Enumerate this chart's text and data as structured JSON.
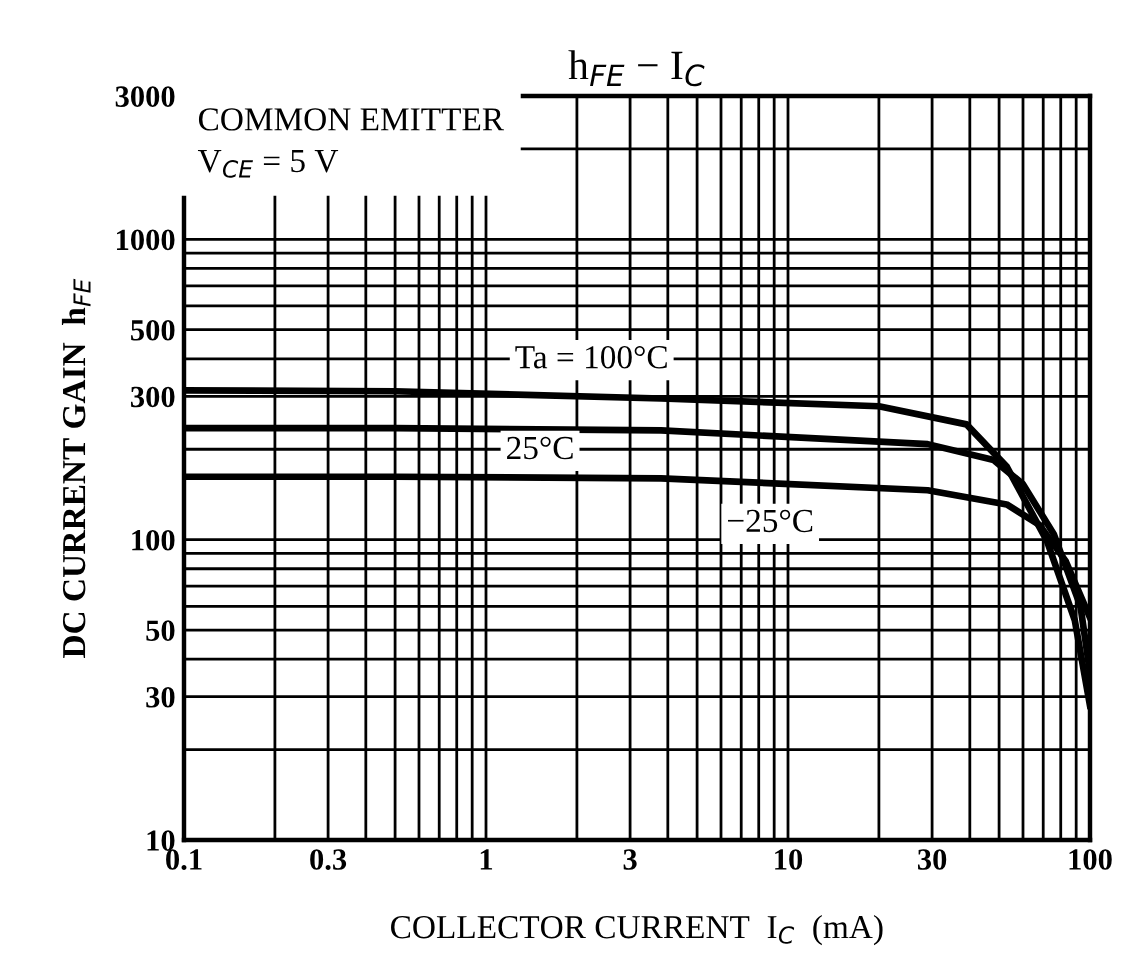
{
  "chart_data": {
    "type": "line",
    "title": "h$_{FE}$ − I$_{C}$",
    "xlabel": "COLLECTOR CURRENT  I$_{C}$  (mA)",
    "ylabel": "DC CURRENT GAIN  h$_{FE}$",
    "annotations": [
      "COMMON EMITTER",
      "V$_{CE}$ = 5 V"
    ],
    "log": "xy",
    "xlim": [
      0.1,
      100
    ],
    "ylim": [
      10,
      3000
    ],
    "xticks": [
      0.1,
      {
        "value": 0.2,
        "label": null
      },
      0.3,
      {
        "value": 0.4,
        "label": null
      },
      {
        "value": 0.5,
        "label": null
      },
      {
        "value": 0.6,
        "label": null
      },
      {
        "value": 0.7,
        "label": null
      },
      {
        "value": 0.8,
        "label": null
      },
      {
        "value": 0.9,
        "label": null
      },
      1,
      {
        "value": 2,
        "label": null
      },
      3,
      {
        "value": 4,
        "label": null
      },
      {
        "value": 5,
        "label": null
      },
      {
        "value": 6,
        "label": null
      },
      {
        "value": 7,
        "label": null
      },
      {
        "value": 8,
        "label": null
      },
      {
        "value": 9,
        "label": null
      },
      10,
      {
        "value": 20,
        "label": null
      },
      30,
      {
        "value": 40,
        "label": null
      },
      {
        "value": 50,
        "label": null
      },
      {
        "value": 60,
        "label": null
      },
      {
        "value": 70,
        "label": null
      },
      {
        "value": 80,
        "label": null
      },
      {
        "value": 90,
        "label": null
      },
      100
    ],
    "yticks": [
      10,
      {
        "value": 20,
        "label": null
      },
      30,
      {
        "value": 40,
        "label": null
      },
      50,
      {
        "value": 60,
        "label": null
      },
      {
        "value": 70,
        "label": null
      },
      {
        "value": 80,
        "label": null
      },
      {
        "value": 90,
        "label": null
      },
      100,
      {
        "value": 200,
        "label": null
      },
      300,
      {
        "value": 400,
        "label": null
      },
      500,
      {
        "value": 600,
        "label": null
      },
      {
        "value": 700,
        "label": null
      },
      {
        "value": 800,
        "label": null
      },
      {
        "value": 900,
        "label": null
      },
      1000,
      {
        "value": 2000,
        "label": null
      },
      3000
    ],
    "grid": true,
    "legend": false,
    "marker": "none",
    "line_style": "solid",
    "series": [
      {
        "name": "Ta = 100°C",
        "color": "#000000",
        "x": [
          0.1,
          0.5,
          3.8,
          20,
          39,
          53,
          72,
          89,
          100
        ],
        "values": [
          314,
          312,
          295,
          278,
          242,
          175,
          99,
          54,
          28
        ]
      },
      {
        "name": "25°C",
        "color": "#000000",
        "x": [
          0.1,
          0.5,
          3.8,
          29,
          48,
          60,
          76,
          93,
          100
        ],
        "values": [
          235,
          235,
          231,
          208,
          184,
          153,
          104,
          60,
          36
        ]
      },
      {
        "name": "−25°C",
        "color": "#000000",
        "x": [
          0.1,
          0.5,
          3.8,
          29,
          53,
          68,
          83,
          100
        ],
        "values": [
          162,
          162,
          160,
          146,
          131,
          112,
          85,
          55
        ]
      }
    ]
  }
}
